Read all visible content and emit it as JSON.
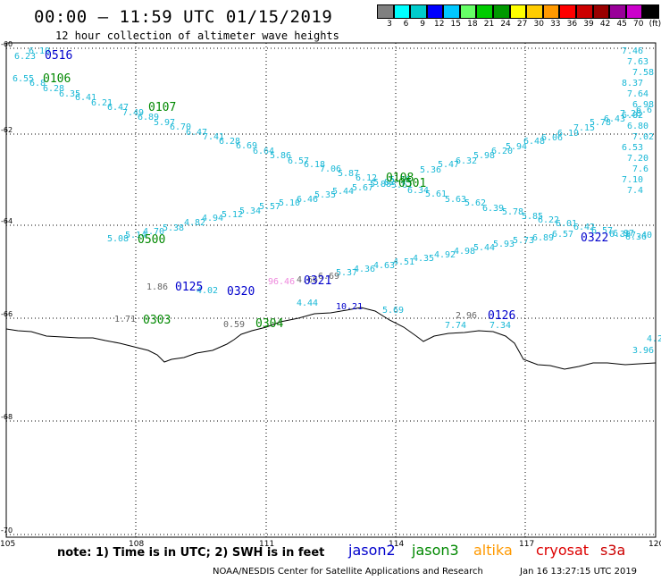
{
  "header": {
    "title": "00:00 – 11:59 UTC 01/15/2019",
    "subtitle": "12 hour collection of altimeter wave heights"
  },
  "legend": {
    "colors": [
      "#808080",
      "#00ffff",
      "#00cccc",
      "#0000ff",
      "#00c8ff",
      "#66ff66",
      "#00cc00",
      "#009900",
      "#ffff00",
      "#ffcc00",
      "#ff9900",
      "#ff0000",
      "#cc0000",
      "#990000",
      "#990099",
      "#cc00cc",
      "#000000"
    ],
    "ticks": [
      "3",
      "6",
      "9",
      "12",
      "15",
      "18",
      "21",
      "24",
      "27",
      "30",
      "33",
      "36",
      "39",
      "42",
      "45",
      "70",
      "(ft)"
    ]
  },
  "note": "note: 1) Time is in UTC; 2) SWH is in feet",
  "satellites": [
    {
      "name": "jason2",
      "color": "#0000cc"
    },
    {
      "name": "jason3",
      "color": "#008800"
    },
    {
      "name": "altika",
      "color": "#ff9900"
    },
    {
      "name": "cryosat",
      "color": "#dd0000"
    },
    {
      "name": "s3a",
      "color": "#cc0000"
    }
  ],
  "footer_left": "NOAA/NESDIS Center for Satellite Applications and Research",
  "footer_right": "Jan 16 13:27:15 UTC 2019",
  "axes": {
    "x_labels": [
      "105",
      "108",
      "111",
      "114",
      "117",
      "120"
    ],
    "y_labels": [
      "-60",
      "-62",
      "-64",
      "-66",
      "-68",
      "-70"
    ]
  },
  "passes": [
    {
      "label": "0516",
      "color": "#0000cc"
    },
    {
      "label": "0106",
      "color": "#008800"
    },
    {
      "label": "0107",
      "color": "#008800"
    },
    {
      "label": "0108",
      "color": "#008800"
    },
    {
      "label": "0501",
      "color": "#008800"
    },
    {
      "label": "0500",
      "color": "#008800"
    },
    {
      "label": "0125",
      "color": "#0000cc"
    },
    {
      "label": "0320",
      "color": "#0000cc"
    },
    {
      "label": "0321",
      "color": "#0000cc"
    },
    {
      "label": "0322",
      "color": "#0000cc"
    },
    {
      "label": "0303",
      "color": "#008800"
    },
    {
      "label": "0304",
      "color": "#008800"
    },
    {
      "label": "0126",
      "color": "#0000cc"
    }
  ],
  "waves": {
    "track1": [
      "6.10",
      "6.23",
      "6.55",
      "6.8",
      "6.28",
      "6.35",
      "6.41",
      "6.21",
      "6.47",
      "7.49",
      "6.89",
      "5.97",
      "6.70",
      "6.47",
      "7.41",
      "6.28",
      "6.69",
      "6.64",
      "5.86",
      "6.57",
      "6.18",
      "7.06",
      "5.87",
      "6.12",
      "5.82",
      "5.61",
      "6.34",
      "5.61",
      "5.63",
      "5.62",
      "6.39",
      "5.78",
      "5.85",
      "6.22",
      "6.01",
      "6.42",
      "6.57",
      "6.39",
      "6.36"
    ],
    "track2": [
      "5.08",
      "5.14",
      "4.70",
      "5.38",
      "4.82",
      "4.94",
      "5.12",
      "5.34",
      "5.57",
      "5.10",
      "6.46",
      "5.35",
      "5.44",
      "5.67",
      "5.88",
      "5.56",
      "5.36",
      "5.47",
      "6.32",
      "5.98",
      "6.20",
      "5.94",
      "6.48",
      "6.06",
      "6.19",
      "7.15",
      "5.78",
      "6.43",
      "7.28",
      "6.6"
    ],
    "track3": [
      "4.44",
      "5.69",
      "5.37",
      "4.36",
      "4.63",
      "4.51",
      "4.35",
      "4.92",
      "4.98",
      "5.44",
      "5.93",
      "5.73",
      "6.89",
      "6.57",
      "6.97",
      "7.40"
    ],
    "right_col": [
      "7.46",
      "7.63",
      "7.58",
      "8.37",
      "7.64",
      "6.98",
      "6.82",
      "6.80",
      "7.02",
      "6.53",
      "7.20",
      "7.6",
      "7.10",
      "7.4"
    ],
    "misc": [
      "1.86",
      "4.02",
      "96.46",
      "4.66",
      "6.69",
      "1.71",
      "0.59",
      "10.21",
      "2.96",
      "7.74",
      "7.34",
      "3.96",
      "4.2"
    ]
  }
}
